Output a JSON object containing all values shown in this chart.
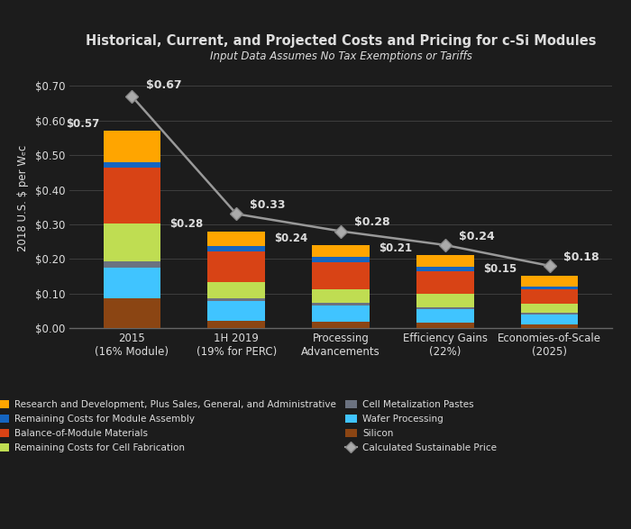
{
  "title": "Historical, Current, and Projected Costs and Pricing for c-Si Modules",
  "subtitle": "Input Data Assumes No Tax Exemptions or Tariffs",
  "ylabel": "2018 U.S. $ per Wₑc",
  "ylim": [
    0.0,
    0.75
  ],
  "yticks": [
    0.0,
    0.1,
    0.2,
    0.3,
    0.4,
    0.5,
    0.6,
    0.7
  ],
  "categories": [
    "2015\n(16% Module)",
    "1H 2019\n(19% for PERC)",
    "Processing\nAdvancements",
    "Efficiency Gains\n(22%)",
    "Economies-of-Scale\n(2025)"
  ],
  "bar_labels": [
    "$0.57",
    "$0.28",
    "$0.24",
    "$0.21",
    "$0.15"
  ],
  "line_labels": [
    "$0.67",
    "$0.33",
    "$0.28",
    "$0.24",
    "$0.18"
  ],
  "line_values": [
    0.67,
    0.33,
    0.28,
    0.24,
    0.18
  ],
  "segment_order": [
    "Silicon",
    "Wafer Processing",
    "Cell Metalization Pastes",
    "Remaining Costs for Cell Fabrication",
    "Balance-of-Module Materials",
    "Remaining Costs for Module Assembly",
    "Research and Development, Plus Sales, General, and Administrative"
  ],
  "segments": {
    "Silicon": {
      "values": [
        0.085,
        0.022,
        0.018,
        0.015,
        0.011
      ],
      "color": "#8B4513"
    },
    "Wafer Processing": {
      "values": [
        0.09,
        0.055,
        0.048,
        0.04,
        0.028
      ],
      "color": "#40C4FF"
    },
    "Cell Metalization Pastes": {
      "values": [
        0.018,
        0.009,
        0.007,
        0.006,
        0.004
      ],
      "color": "#6B7280"
    },
    "Remaining Costs for Cell Fabrication": {
      "values": [
        0.11,
        0.048,
        0.04,
        0.037,
        0.026
      ],
      "color": "#BFDD52"
    },
    "Balance-of-Module Materials": {
      "values": [
        0.162,
        0.088,
        0.078,
        0.066,
        0.042
      ],
      "color": "#D84315"
    },
    "Remaining Costs for Module Assembly": {
      "values": [
        0.014,
        0.016,
        0.014,
        0.012,
        0.009
      ],
      "color": "#1565C0"
    },
    "Research and Development, Plus Sales, General, and Administrative": {
      "values": [
        0.091,
        0.042,
        0.035,
        0.034,
        0.03
      ],
      "color": "#FFA500"
    }
  },
  "bar_width": 0.55,
  "bg_color": "#1C1C1C",
  "plot_bg_color": "#1C1C1C",
  "text_color": "#DDDDDD",
  "grid_color": "#444444",
  "title_fontsize": 10.5,
  "subtitle_fontsize": 8.5,
  "axis_fontsize": 8.5,
  "legend_fontsize": 7.5,
  "legend_order_left": [
    "Research and Development, Plus Sales, General, and Administrative",
    "Remaining Costs for Module Assembly",
    "Balance-of-Module Materials",
    "Remaining Costs for Cell Fabrication"
  ],
  "legend_order_right": [
    "Cell Metalization Pastes",
    "Wafer Processing",
    "Silicon",
    "Calculated Sustainable Price"
  ]
}
